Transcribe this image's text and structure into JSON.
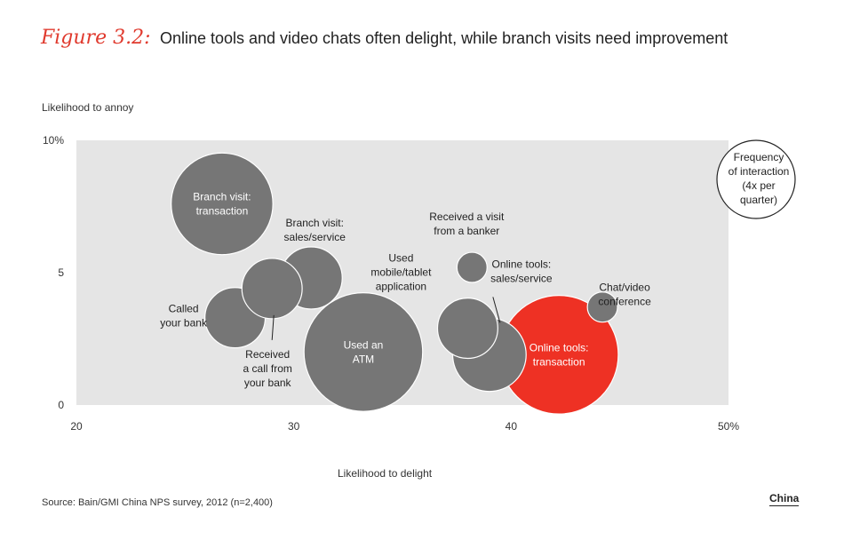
{
  "figure_label": "Figure 3.2:",
  "title": "Online tools and video chats often delight, while branch visits need improvement",
  "source": "Source: Bain/GMI China NPS survey, 2012 (n=2,400)",
  "region_label": "China",
  "legend": {
    "text_lines": [
      "Frequency",
      "of interaction",
      "(4x per",
      "quarter)"
    ]
  },
  "colors": {
    "plot_bg": "#e5e5e5",
    "bubble": "#767676",
    "highlight": "#ee3124",
    "text_light": "#ffffff"
  },
  "chart_data": {
    "type": "scatter",
    "title": "Online tools and video chats often delight, while branch visits need improvement",
    "xlabel": "Likelihood to delight",
    "ylabel": "Likelihood to annoy",
    "xlim": [
      20,
      50
    ],
    "ylim": [
      0,
      10
    ],
    "x_ticks": [
      "20",
      "30",
      "40",
      "50%"
    ],
    "y_ticks": [
      "0",
      "5",
      "10%"
    ],
    "legend_placement": "top-right",
    "size_note": "Bubble size = frequency of interaction",
    "points": [
      {
        "label_lines": [
          "Branch visit:",
          "transaction"
        ],
        "x": 26.7,
        "y": 7.6,
        "size": 5.4,
        "label_inside": true,
        "highlight": false
      },
      {
        "label_lines": [
          "Branch visit:",
          "sales/service"
        ],
        "x": 30.8,
        "y": 4.8,
        "size": 3.3,
        "label_inside": false,
        "highlight": false
      },
      {
        "label_lines": [
          "Called",
          "your bank"
        ],
        "x": 27.3,
        "y": 3.3,
        "size": 3.2,
        "label_inside": false,
        "highlight": false
      },
      {
        "label_lines": [
          "Received",
          "a call from",
          "your bank"
        ],
        "x": 29.0,
        "y": 4.4,
        "size": 3.2,
        "label_inside": false,
        "highlight": false
      },
      {
        "label_lines": [
          "Used an",
          "ATM"
        ],
        "x": 33.2,
        "y": 2.0,
        "size": 6.3,
        "label_inside": true,
        "highlight": false
      },
      {
        "label_lines": [
          "Received a visit",
          "from a banker"
        ],
        "x": 38.2,
        "y": 5.2,
        "size": 1.6,
        "label_inside": false,
        "highlight": false
      },
      {
        "label_lines": [
          "Online tools:",
          "sales/service"
        ],
        "x": 39.0,
        "y": 1.9,
        "size": 3.9,
        "label_inside": false,
        "highlight": false
      },
      {
        "label_lines": [
          "Used",
          "mobile/tablet",
          "application"
        ],
        "x": 38.0,
        "y": 2.9,
        "size": 3.2,
        "label_inside": false,
        "highlight": false
      },
      {
        "label_lines": [
          "Online tools:",
          "transaction"
        ],
        "x": 42.2,
        "y": 1.9,
        "size": 6.3,
        "label_inside": true,
        "highlight": true
      },
      {
        "label_lines": [
          "Chat/video",
          "conference"
        ],
        "x": 44.2,
        "y": 3.7,
        "size": 1.6,
        "label_inside": false,
        "highlight": false
      }
    ]
  }
}
